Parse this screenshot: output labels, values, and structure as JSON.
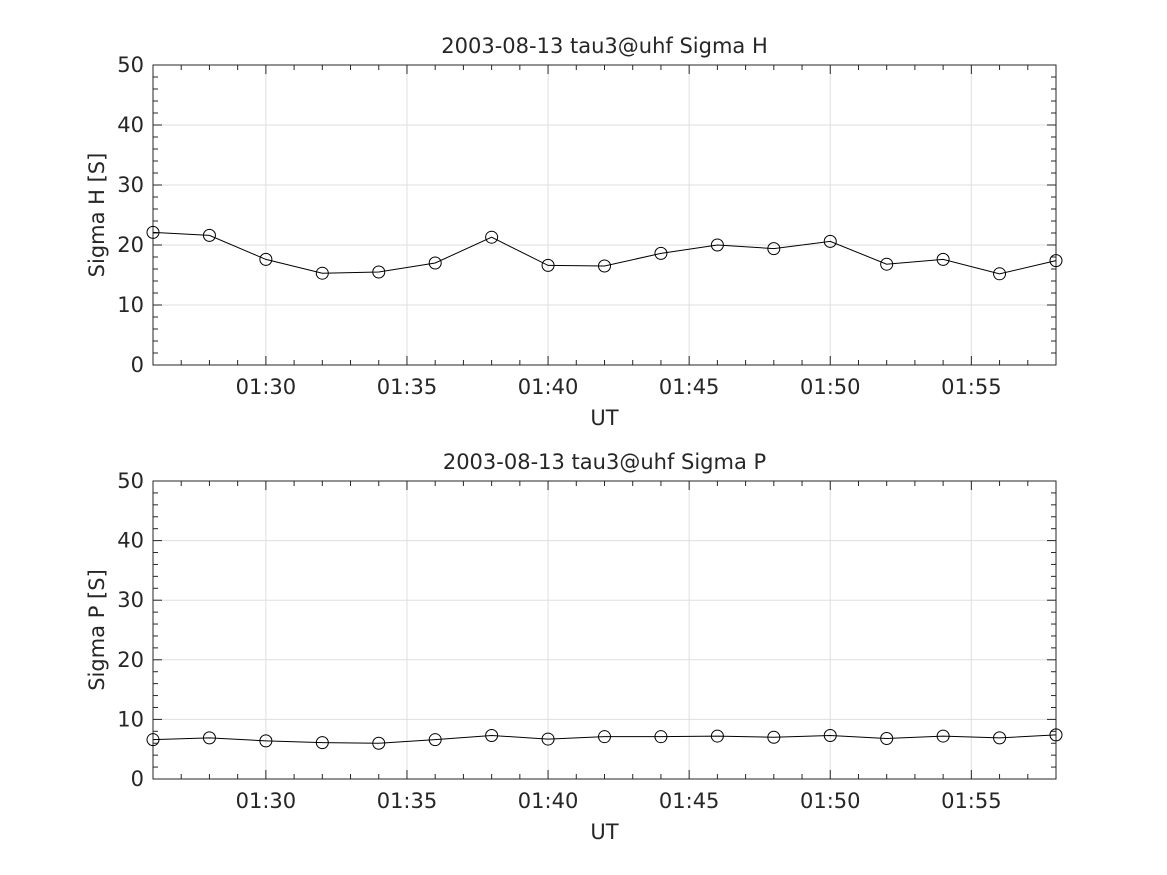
{
  "chart_data": [
    {
      "type": "line",
      "title": "2003-08-13  tau3@uhf Sigma H",
      "xlabel": "UT",
      "ylabel": "Sigma H [S]",
      "x": [
        "01:26",
        "01:28",
        "01:30",
        "01:32",
        "01:34",
        "01:36",
        "01:38",
        "01:40",
        "01:42",
        "01:44",
        "01:46",
        "01:48",
        "01:50",
        "01:52",
        "01:54",
        "01:56",
        "01:58"
      ],
      "values": [
        22.1,
        21.6,
        17.6,
        15.3,
        15.5,
        17.0,
        21.3,
        16.6,
        16.5,
        18.6,
        20.0,
        19.4,
        20.6,
        16.8,
        17.6,
        15.2,
        17.4
      ],
      "xlim": [
        "01:26",
        "01:58"
      ],
      "ylim": [
        0,
        50
      ],
      "xticks": [
        "01:30",
        "01:35",
        "01:40",
        "01:45",
        "01:50",
        "01:55"
      ],
      "yticks": [
        "0",
        "10",
        "20",
        "30",
        "40",
        "50"
      ],
      "marker": "circle",
      "grid": true,
      "color": "#000000"
    },
    {
      "type": "line",
      "title": "2003-08-13  tau3@uhf Sigma P",
      "xlabel": "UT",
      "ylabel": "Sigma P [S]",
      "x": [
        "01:26",
        "01:28",
        "01:30",
        "01:32",
        "01:34",
        "01:36",
        "01:38",
        "01:40",
        "01:42",
        "01:44",
        "01:46",
        "01:48",
        "01:50",
        "01:52",
        "01:54",
        "01:56",
        "01:58"
      ],
      "values": [
        6.6,
        6.9,
        6.4,
        6.1,
        6.0,
        6.6,
        7.3,
        6.7,
        7.1,
        7.1,
        7.2,
        7.0,
        7.3,
        6.8,
        7.2,
        6.9,
        7.4
      ],
      "xlim": [
        "01:26",
        "01:58"
      ],
      "ylim": [
        0,
        50
      ],
      "xticks": [
        "01:30",
        "01:35",
        "01:40",
        "01:45",
        "01:50",
        "01:55"
      ],
      "yticks": [
        "0",
        "10",
        "20",
        "30",
        "40",
        "50"
      ],
      "marker": "circle",
      "grid": true,
      "color": "#000000"
    }
  ]
}
